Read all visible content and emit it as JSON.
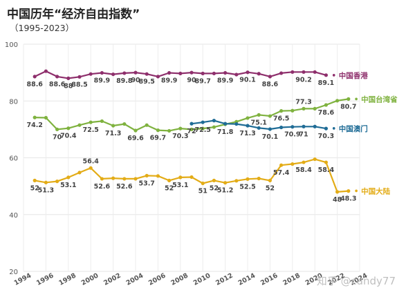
{
  "title": "中国历年“经济自由指数”",
  "subtitle": "（1995-2023）",
  "watermark": "知乎 @candy77",
  "chart_data": {
    "type": "line",
    "ylim": [
      20,
      100
    ],
    "yticks": [
      20,
      40,
      60,
      80,
      100
    ],
    "xlim": [
      1994,
      2024
    ],
    "xticks": [
      1994,
      1996,
      1998,
      2000,
      2002,
      2004,
      2006,
      2008,
      2010,
      2012,
      2014,
      2016,
      2018,
      2020,
      2022,
      2024
    ],
    "grid": true,
    "series": [
      {
        "name": "中国香港",
        "color": "#8e2f6c",
        "x": [
          1995,
          1996,
          1997,
          1998,
          1999,
          2000,
          2001,
          2002,
          2003,
          2004,
          2005,
          2006,
          2007,
          2008,
          2009,
          2010,
          2011,
          2012,
          2013,
          2014,
          2015,
          2016,
          2017,
          2018,
          2019,
          2020,
          2021
        ],
        "values": [
          88.6,
          90.5,
          88.6,
          88.0,
          88.5,
          89.5,
          89.9,
          89.4,
          89.8,
          90.0,
          89.5,
          88.6,
          89.9,
          89.7,
          90.0,
          89.7,
          89.7,
          89.9,
          89.3,
          90.1,
          89.6,
          88.6,
          89.8,
          90.2,
          90.2,
          90.2,
          89.1
        ],
        "labels": [
          [
            1995,
            "88.6",
            "below"
          ],
          [
            1997,
            "88.6",
            "below"
          ],
          [
            1998,
            "88",
            "below"
          ],
          [
            1999,
            "88.5",
            "below"
          ],
          [
            2001,
            "89.9",
            "below"
          ],
          [
            2003,
            "89.8",
            "below"
          ],
          [
            2004,
            "90",
            "below"
          ],
          [
            2005,
            "89.5",
            "below"
          ],
          [
            2007,
            "89.9",
            "below"
          ],
          [
            2009,
            "90",
            "below"
          ],
          [
            2010,
            "89.7",
            "below"
          ],
          [
            2012,
            "89.9",
            "below"
          ],
          [
            2014,
            "90.1",
            "below"
          ],
          [
            2016,
            "88.6",
            "below"
          ],
          [
            2019,
            "90.2",
            "below"
          ],
          [
            2021,
            "89.1",
            "below"
          ]
        ]
      },
      {
        "name": "中国台湾省",
        "color": "#7fb23f",
        "x": [
          1995,
          1996,
          1997,
          1998,
          1999,
          2000,
          2001,
          2002,
          2003,
          2004,
          2005,
          2006,
          2007,
          2008,
          2009,
          2010,
          2011,
          2012,
          2013,
          2014,
          2015,
          2016,
          2017,
          2018,
          2019,
          2020,
          2021,
          2022,
          2023
        ],
        "values": [
          74.2,
          74.1,
          70.0,
          70.4,
          71.5,
          72.5,
          72.9,
          71.3,
          71.9,
          69.6,
          71.5,
          69.7,
          69.5,
          70.3,
          70.0,
          70.3,
          70.8,
          71.8,
          72.7,
          74.0,
          75.1,
          74.7,
          76.5,
          76.6,
          77.3,
          77.3,
          78.6,
          80.1,
          80.7
        ],
        "labels": [
          [
            1995,
            "74.2",
            "below"
          ],
          [
            1997,
            "70",
            "below"
          ],
          [
            1998,
            "70.4",
            "below"
          ],
          [
            2000,
            "72.5",
            "below"
          ],
          [
            2002,
            "71.3",
            "below"
          ],
          [
            2004,
            "69.6",
            "below"
          ],
          [
            2006,
            "69.7",
            "below"
          ],
          [
            2008,
            "70.3",
            "below"
          ],
          [
            2012,
            "71.8",
            "below"
          ],
          [
            2015,
            "75.1",
            "below"
          ],
          [
            2017,
            "76.5",
            "below"
          ],
          [
            2019,
            "77.3",
            "above"
          ],
          [
            2021,
            "78.6",
            "below"
          ],
          [
            2023,
            "80.7",
            "below"
          ]
        ]
      },
      {
        "name": "中国澳门",
        "color": "#1f6c96",
        "x": [
          2009,
          2010,
          2011,
          2012,
          2013,
          2014,
          2015,
          2016,
          2017,
          2018,
          2019,
          2020,
          2021
        ],
        "values": [
          72.0,
          72.5,
          73.1,
          72.0,
          71.9,
          71.3,
          70.5,
          70.1,
          70.7,
          70.9,
          71.0,
          71.0,
          70.3
        ],
        "labels": [
          [
            2009,
            "72",
            "below"
          ],
          [
            2010,
            "72.5",
            "below"
          ],
          [
            2014,
            "71.3",
            "below"
          ],
          [
            2016,
            "70.1",
            "below"
          ],
          [
            2018,
            "70.9",
            "below"
          ],
          [
            2019,
            "71",
            "below"
          ],
          [
            2021,
            "70.3",
            "below"
          ]
        ]
      },
      {
        "name": "中国大陆",
        "color": "#e3ac17",
        "x": [
          1995,
          1996,
          1997,
          1998,
          1999,
          2000,
          2001,
          2002,
          2003,
          2004,
          2005,
          2006,
          2007,
          2008,
          2009,
          2010,
          2011,
          2012,
          2013,
          2014,
          2015,
          2016,
          2017,
          2018,
          2019,
          2020,
          2021,
          2022,
          2023
        ],
        "values": [
          52.0,
          51.3,
          51.7,
          53.1,
          54.8,
          56.4,
          52.6,
          52.8,
          52.6,
          52.6,
          53.7,
          53.6,
          52.0,
          53.1,
          53.2,
          51.0,
          52.0,
          51.2,
          51.9,
          52.5,
          52.7,
          52.0,
          57.4,
          57.8,
          58.4,
          59.5,
          58.4,
          48.0,
          48.3
        ],
        "labels": [
          [
            1995,
            "52",
            "below"
          ],
          [
            1996,
            "51.3",
            "below"
          ],
          [
            1998,
            "53.1",
            "below"
          ],
          [
            2000,
            "56.4",
            "above"
          ],
          [
            2001,
            "52.6",
            "below"
          ],
          [
            2003,
            "52.6",
            "below"
          ],
          [
            2005,
            "53.7",
            "below"
          ],
          [
            2007,
            "52",
            "below"
          ],
          [
            2008,
            "53.1",
            "below"
          ],
          [
            2010,
            "51",
            "below"
          ],
          [
            2011,
            "52",
            "below"
          ],
          [
            2012,
            "51.2",
            "below"
          ],
          [
            2014,
            "52.5",
            "below"
          ],
          [
            2016,
            "52",
            "below"
          ],
          [
            2017,
            "57.4",
            "below"
          ],
          [
            2019,
            "58.4",
            "below"
          ],
          [
            2021,
            "58.4",
            "below"
          ],
          [
            2022,
            "48",
            "below"
          ],
          [
            2023,
            "48.3",
            "below"
          ]
        ]
      }
    ]
  }
}
